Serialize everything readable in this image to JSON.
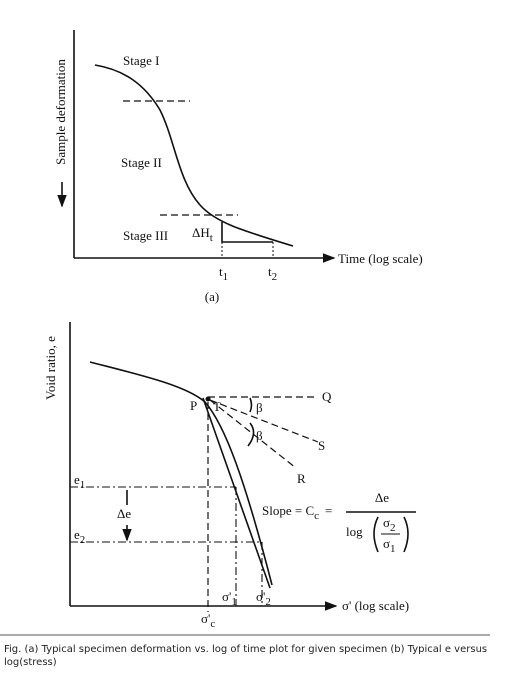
{
  "panel_a": {
    "y_label": "Sample deformation",
    "stage_1": "Stage I",
    "stage_2": "Stage II",
    "stage_3": "Stage III",
    "delta_h": "ΔH",
    "delta_h_sub": "t",
    "x_label": "Time (log scale)",
    "t1": "t",
    "t1_sub": "1",
    "t2": "t",
    "t2_sub": "2",
    "panel_label": "(a)"
  },
  "panel_b": {
    "y_label": "Void ratio, e",
    "point_p": "P",
    "point_t": "T",
    "line_q": "Q",
    "line_s": "S",
    "line_r": "R",
    "beta_1": "β",
    "beta_2": "β",
    "e1": "e",
    "e1_sub": "1",
    "e2": "e",
    "e2_sub": "2",
    "delta_e": "Δe",
    "slope": "Slope = C",
    "slope_sub": "c",
    "equals": "=",
    "fraction_top": "Δe",
    "fraction_log": "log",
    "sigma_2": "σ",
    "sigma_2_sub": "2",
    "sigma_1": "σ",
    "sigma_1_sub": "1",
    "sigma_1_prime": "σ'",
    "sigma_1_prime_sub": "1",
    "sigma_2_prime": "σ'",
    "sigma_2_prime_sub": "2",
    "sigma_c": "σ'",
    "sigma_c_sub": "c",
    "x_label": "σ' (log scale)"
  },
  "caption": "Fig. (a) Typical specimen deformation vs. log of time plot for given specimen  (b) Typical e versus log(stress)"
}
